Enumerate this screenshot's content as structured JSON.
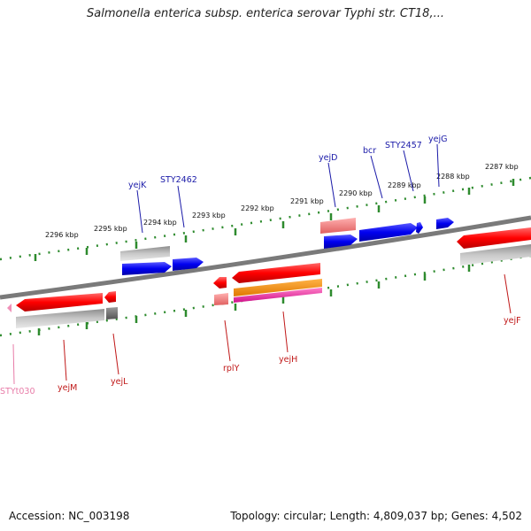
{
  "title": "Salmonella enterica subsp. enterica serovar Typhi str. CT18,...",
  "footer": {
    "accession": "Accession: NC_003198",
    "info": "Topology: circular; Length: 4,809,037 bp; Genes: 4,502"
  },
  "colors": {
    "backbone": "#8a8a8a",
    "tick": "#2e8b2e",
    "forward_label": "#1a1aa8",
    "reverse_label": "#c01818",
    "pseudo_label": "#e87ca8"
  },
  "ticks": [
    "2296 kbp",
    "2295 kbp",
    "2294 kbp",
    "2293 kbp",
    "2292 kbp",
    "2291 kbp",
    "2290 kbp",
    "2289 kbp",
    "2288 kbp",
    "2287 kbp"
  ],
  "forward_labels": [
    "yejK",
    "STY2462",
    "yejD",
    "bcr",
    "STY2457",
    "yejG"
  ],
  "reverse_labels": [
    "STYt030",
    "yejM",
    "yejL",
    "rplY",
    "yejH",
    "yejF"
  ]
}
